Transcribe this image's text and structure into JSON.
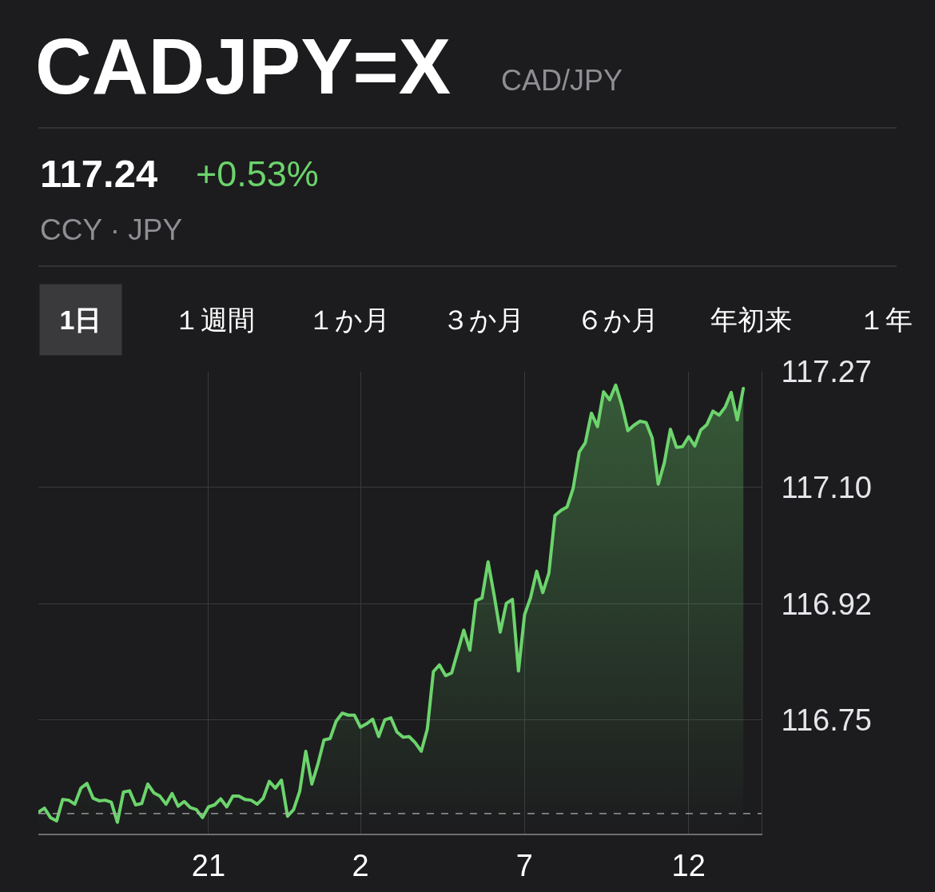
{
  "chart_data": {
    "type": "area",
    "title": "CADJPY=X",
    "subtitle": "CAD/JPY",
    "annotations": [
      "117.24",
      "+0.53%",
      "CCY · JPY",
      "1日",
      "１週間",
      "１か月",
      "３か月",
      "６か月",
      "年初来",
      "１年"
    ],
    "categories": [
      null,
      null,
      null,
      null,
      null,
      null,
      null,
      null,
      null,
      null,
      null,
      null,
      null,
      null,
      null,
      null,
      null,
      null,
      null,
      null,
      null,
      null,
      null,
      null,
      null,
      null,
      null,
      null,
      "21",
      null,
      null,
      null,
      null,
      null,
      null,
      null,
      null,
      null,
      null,
      null,
      null,
      null,
      null,
      null,
      null,
      null,
      null,
      null,
      null,
      null,
      null,
      null,
      null,
      "2",
      null,
      null,
      null,
      null,
      null,
      null,
      null,
      null,
      null,
      null,
      null,
      null,
      null,
      null,
      null,
      null,
      null,
      null,
      null,
      null,
      null,
      null,
      null,
      null,
      null,
      null,
      "7",
      null,
      null,
      null,
      null,
      null,
      null,
      null,
      null,
      null,
      null,
      null,
      null,
      null,
      null,
      null,
      null,
      null,
      null,
      null,
      null,
      null,
      null,
      null,
      null,
      null,
      null,
      "12",
      null,
      null,
      null,
      null,
      null,
      null,
      null,
      null,
      null,
      null,
      null,
      null
    ],
    "series": [
      {
        "color": "#6cd46c",
        "values": [
          116.612,
          116.618,
          116.604,
          116.599,
          116.631,
          116.63,
          116.624,
          116.648,
          116.655,
          116.633,
          116.629,
          116.63,
          116.627,
          116.597,
          116.642,
          116.644,
          116.623,
          116.625,
          116.654,
          116.641,
          116.636,
          116.624,
          116.64,
          116.621,
          116.628,
          116.619,
          116.616,
          116.604,
          116.62,
          116.623,
          116.632,
          116.62,
          116.636,
          116.636,
          116.631,
          116.63,
          116.624,
          116.633,
          116.658,
          116.648,
          116.66,
          116.606,
          116.616,
          116.643,
          116.703,
          116.654,
          116.684,
          116.72,
          116.722,
          116.748,
          116.76,
          116.757,
          116.757,
          116.739,
          116.744,
          116.751,
          116.725,
          116.75,
          116.753,
          116.732,
          116.724,
          116.725,
          116.716,
          116.703,
          116.736,
          116.822,
          116.832,
          116.816,
          116.82,
          116.852,
          116.884,
          116.854,
          116.928,
          116.932,
          116.986,
          116.936,
          116.881,
          116.924,
          116.93,
          116.823,
          116.907,
          116.933,
          116.972,
          116.94,
          116.969,
          117.055,
          117.063,
          117.068,
          117.096,
          117.15,
          117.164,
          117.208,
          117.188,
          117.24,
          117.228,
          117.25,
          117.22,
          117.182,
          117.19,
          117.196,
          117.194,
          117.171,
          117.102,
          117.134,
          117.184,
          117.157,
          117.158,
          117.173,
          117.159,
          117.183,
          117.191,
          117.211,
          117.205,
          117.217,
          117.239,
          117.198,
          117.245,
          null,
          null,
          null
        ]
      }
    ],
    "ylim": [
      116.58,
      117.27
    ],
    "yticks": [
      117.27,
      {
        "value": 117.097,
        "label": "117.10"
      },
      {
        "value": 116.923,
        "label": "116.92"
      },
      116.75
    ],
    "ref_lines": [
      {
        "axis": "y",
        "value": 116.61,
        "color": "#aeaeb2",
        "line_style": "dashed"
      }
    ],
    "grid": true
  }
}
